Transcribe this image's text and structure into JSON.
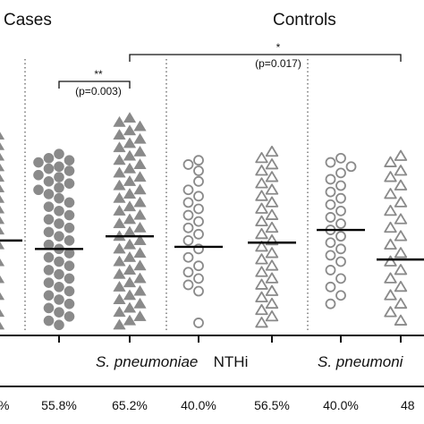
{
  "chart_data": {
    "type": "scatter",
    "title": "",
    "xlabel": "",
    "ylabel": "",
    "group_labels": [
      "Cases",
      "Controls"
    ],
    "category_labels": [
      {
        "text": "S. pneumoniae",
        "italic": true,
        "for_columns": [
          1,
          2
        ]
      },
      {
        "text": "NTHi",
        "italic": false,
        "for_columns": [
          3,
          4
        ]
      },
      {
        "text": "S. pneumoni",
        "italic": true,
        "for_columns": [
          5,
          6
        ]
      }
    ],
    "percentages": [
      "%",
      "55.8%",
      "65.2%",
      "40.0%",
      "56.5%",
      "40.0%",
      "48"
    ],
    "comparisons": [
      {
        "stars": "**",
        "p": "(p=0.003)",
        "from_column": 1,
        "to_column": 2
      },
      {
        "stars": "*",
        "p": "(p=0.017)",
        "from_column": 2,
        "to_column": 6
      }
    ],
    "ylim": [
      0,
      100
    ],
    "columns": [
      {
        "marker": "triangle-filled",
        "median": 42,
        "values": [
          92,
          87,
          82,
          77,
          72,
          67,
          62,
          57,
          52,
          47,
          44,
          40,
          36,
          32,
          28,
          24,
          20,
          16,
          12,
          8,
          5,
          2
        ]
      },
      {
        "marker": "circle-filled",
        "median": 38,
        "values": [
          83,
          81,
          80,
          79,
          77,
          76,
          75,
          73,
          72,
          70,
          69,
          67,
          66,
          64,
          62,
          60,
          58,
          56,
          54,
          52,
          50,
          48,
          46,
          44,
          42,
          40,
          38,
          36,
          34,
          32,
          30,
          28,
          26,
          24,
          22,
          20,
          18,
          16,
          14,
          12,
          10,
          8,
          6,
          4,
          2
        ]
      },
      {
        "marker": "triangle-filled",
        "median": 44,
        "values": [
          100,
          98,
          96,
          94,
          92,
          90,
          88,
          86,
          84,
          82,
          80,
          78,
          76,
          74,
          72,
          70,
          68,
          66,
          64,
          62,
          60,
          58,
          56,
          54,
          52,
          50,
          48,
          46,
          44,
          42,
          40,
          38,
          36,
          34,
          32,
          30,
          28,
          26,
          24,
          22,
          20,
          18,
          16,
          14,
          12,
          10,
          8,
          6,
          4,
          2
        ]
      },
      {
        "marker": "circle-open",
        "median": 39,
        "values": [
          80,
          78,
          75,
          70,
          66,
          63,
          60,
          57,
          54,
          51,
          48,
          45,
          42,
          38,
          34,
          30,
          27,
          24,
          21,
          18,
          3
        ]
      },
      {
        "marker": "triangle-open",
        "median": 41,
        "values": [
          84,
          81,
          78,
          75,
          72,
          69,
          66,
          63,
          60,
          57,
          54,
          51,
          48,
          45,
          42,
          39,
          36,
          33,
          30,
          27,
          24,
          21,
          18,
          15,
          12,
          9,
          6,
          3
        ]
      },
      {
        "marker": "circle-open",
        "median": 47,
        "values": [
          81,
          79,
          77,
          74,
          71,
          68,
          65,
          62,
          59,
          56,
          53,
          50,
          47,
          44,
          41,
          38,
          35,
          32,
          28,
          24,
          20,
          16,
          12
        ]
      },
      {
        "marker": "triangle-open",
        "median": 33,
        "values": [
          82,
          79,
          75,
          72,
          68,
          64,
          60,
          56,
          52,
          48,
          44,
          40,
          36,
          32,
          28,
          24,
          20,
          16,
          12,
          8,
          4
        ]
      }
    ]
  }
}
